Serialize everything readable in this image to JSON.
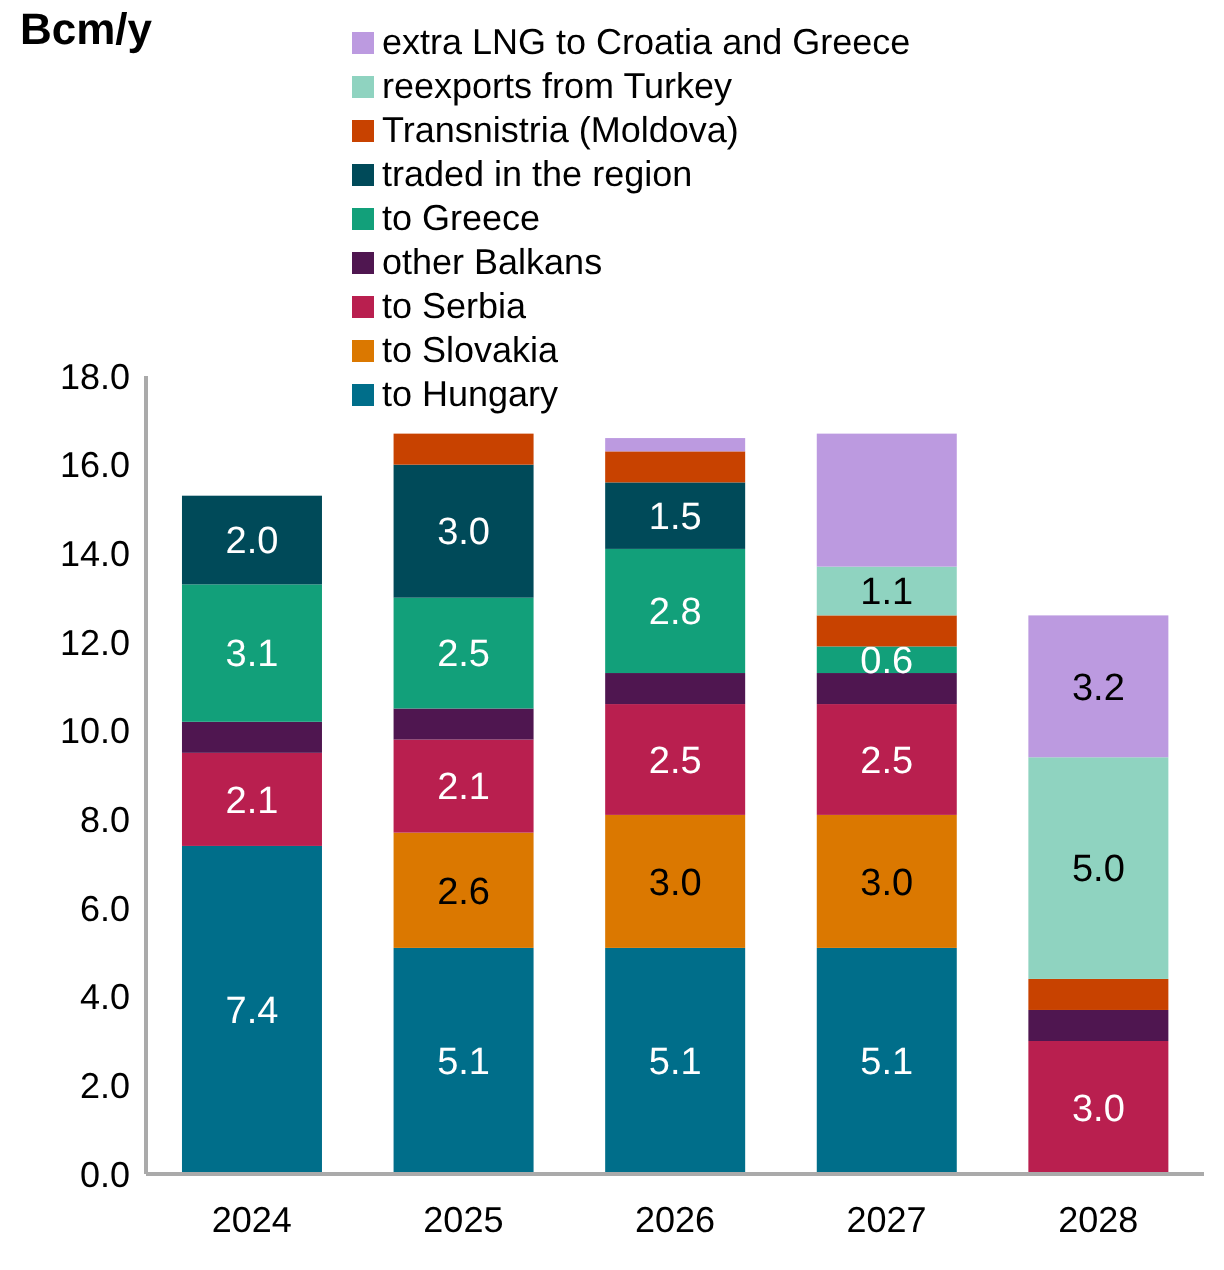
{
  "chart_data": {
    "type": "bar",
    "stacked": true,
    "annotations": [
      "Bcm/y"
    ],
    "categories": [
      "2024",
      "2025",
      "2026",
      "2027",
      "2028"
    ],
    "ylim": [
      0,
      18
    ],
    "yticks": [
      {
        "value": 0,
        "label": "0.0"
      },
      {
        "value": 2,
        "label": "2.0"
      },
      {
        "value": 4,
        "label": "4.0"
      },
      {
        "value": 6,
        "label": "6.0"
      },
      {
        "value": 8,
        "label": "8.0"
      },
      {
        "value": 10,
        "label": "10.0"
      },
      {
        "value": 12,
        "label": "12.0"
      },
      {
        "value": 14,
        "label": "14.0"
      },
      {
        "value": 16,
        "label": "16.0"
      },
      {
        "value": 18,
        "label": "18.0"
      }
    ],
    "grid": false,
    "legend": "top",
    "series": [
      {
        "name": "to Hungary",
        "color": "#006e8a",
        "values": [
          7.4,
          5.1,
          5.1,
          5.1,
          0
        ],
        "value_labels": [
          "7.4",
          "5.1",
          "5.1",
          "5.1",
          null
        ]
      },
      {
        "name": "to Slovakia",
        "color": "#db7800",
        "values": [
          0,
          2.6,
          3.0,
          3.0,
          0
        ],
        "value_labels": [
          null,
          "2.6",
          "3.0",
          "3.0",
          null
        ]
      },
      {
        "name": "to Serbia",
        "color": "#b91f4f",
        "values": [
          2.1,
          2.1,
          2.5,
          2.5,
          3.0
        ],
        "value_labels": [
          "2.1",
          "2.1",
          "2.5",
          "2.5",
          "3.0"
        ]
      },
      {
        "name": "other Balkans",
        "color": "#4f1650",
        "values": [
          0.7,
          0.7,
          0.7,
          0.7,
          0.7
        ]
      },
      {
        "name": "to Greece",
        "color": "#12a07a",
        "values": [
          3.1,
          2.5,
          2.8,
          0.6,
          0
        ],
        "value_labels": [
          "3.1",
          "2.5",
          "2.8",
          "0.6",
          null
        ]
      },
      {
        "name": "traded in the region",
        "color": "#004a59",
        "values": [
          2.0,
          3.0,
          1.5,
          0,
          0
        ],
        "value_labels": [
          "2.0",
          "3.0",
          "1.5",
          null,
          null
        ]
      },
      {
        "name": "Transnistria (Moldova)",
        "color": "#c84200",
        "values": [
          0,
          0.7,
          0.7,
          0.7,
          0.7
        ]
      },
      {
        "name": "reexports from Turkey",
        "color": "#8fd3c0",
        "values": [
          0,
          0,
          0,
          1.1,
          5.0
        ],
        "value_labels": [
          null,
          null,
          null,
          "1.1",
          "5.0"
        ]
      },
      {
        "name": "extra LNG to Croatia and Greece",
        "color": "#bc9ae0",
        "values": [
          0,
          0,
          0.3,
          3.0,
          3.2
        ],
        "value_labels": [
          null,
          null,
          null,
          null,
          "3.2"
        ]
      }
    ]
  }
}
